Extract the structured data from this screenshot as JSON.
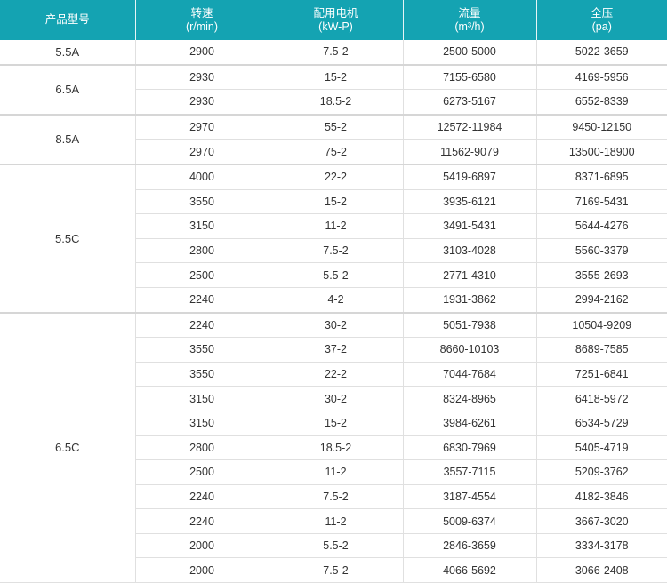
{
  "headers": [
    {
      "title": "产品型号",
      "unit": ""
    },
    {
      "title": "转速",
      "unit": "(r/min)"
    },
    {
      "title": "配用电机",
      "unit": "(kW-P)"
    },
    {
      "title": "流量",
      "unit": "(m³/h)"
    },
    {
      "title": "全压",
      "unit": "(pa)"
    }
  ],
  "colors": {
    "header_bg": "#14a3b2",
    "header_text": "#ffffff",
    "grid": "#e0e0e0"
  },
  "groups": [
    {
      "model": "5.5A",
      "rows": [
        [
          "2900",
          "7.5-2",
          "2500-5000",
          "5022-3659"
        ]
      ]
    },
    {
      "model": "6.5A",
      "rows": [
        [
          "2930",
          "15-2",
          "7155-6580",
          "4169-5956"
        ],
        [
          "2930",
          "18.5-2",
          "6273-5167",
          "6552-8339"
        ]
      ]
    },
    {
      "model": "8.5A",
      "rows": [
        [
          "2970",
          "55-2",
          "12572-11984",
          "9450-12150"
        ],
        [
          "2970",
          "75-2",
          "11562-9079",
          "13500-18900"
        ]
      ]
    },
    {
      "model": "5.5C",
      "rows": [
        [
          "4000",
          "22-2",
          "5419-6897",
          "8371-6895"
        ],
        [
          "3550",
          "15-2",
          "3935-6121",
          "7169-5431"
        ],
        [
          "3150",
          "11-2",
          "3491-5431",
          "5644-4276"
        ],
        [
          "2800",
          "7.5-2",
          "3103-4028",
          "5560-3379"
        ],
        [
          "2500",
          "5.5-2",
          "2771-4310",
          "3555-2693"
        ],
        [
          "2240",
          "4-2",
          "1931-3862",
          "2994-2162"
        ]
      ]
    },
    {
      "model": "6.5C",
      "rows": [
        [
          "2240",
          "30-2",
          "5051-7938",
          "10504-9209"
        ],
        [
          "3550",
          "37-2",
          "8660-10103",
          "8689-7585"
        ],
        [
          "3550",
          "22-2",
          "7044-7684",
          "7251-6841"
        ],
        [
          "3150",
          "30-2",
          "8324-8965",
          "6418-5972"
        ],
        [
          "3150",
          "15-2",
          "3984-6261",
          "6534-5729"
        ],
        [
          "2800",
          "18.5-2",
          "6830-7969",
          "5405-4719"
        ],
        [
          "2500",
          "11-2",
          "3557-7115",
          "5209-3762"
        ],
        [
          "2240",
          "7.5-2",
          "3187-4554",
          "4182-3846"
        ],
        [
          "2240",
          "11-2",
          "5009-6374",
          "3667-3020"
        ],
        [
          "2000",
          "5.5-2",
          "2846-3659",
          "3334-3178"
        ],
        [
          "2000",
          "7.5-2",
          "4066-5692",
          "3066-2408"
        ]
      ]
    }
  ]
}
